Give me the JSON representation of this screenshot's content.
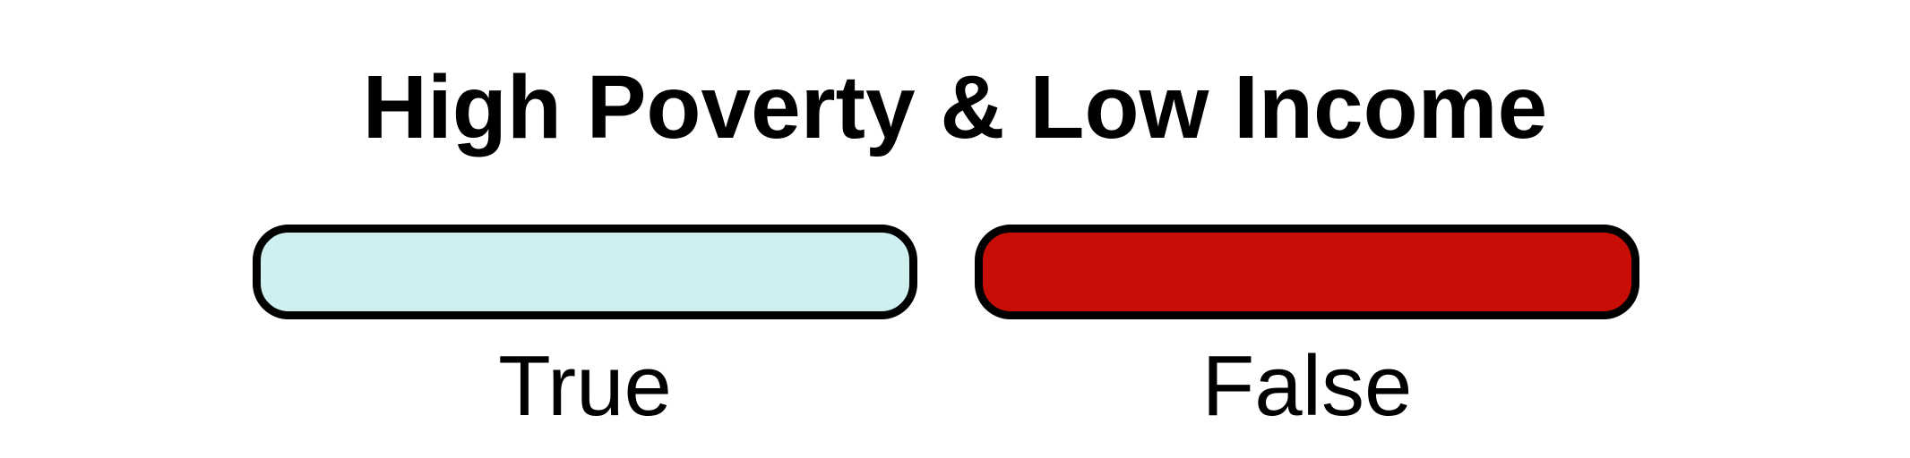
{
  "legend": {
    "title": "High Poverty & Low Income",
    "items": [
      {
        "label": "True",
        "color": "#cff0f0"
      },
      {
        "label": "False",
        "color": "#c80d06"
      }
    ]
  }
}
